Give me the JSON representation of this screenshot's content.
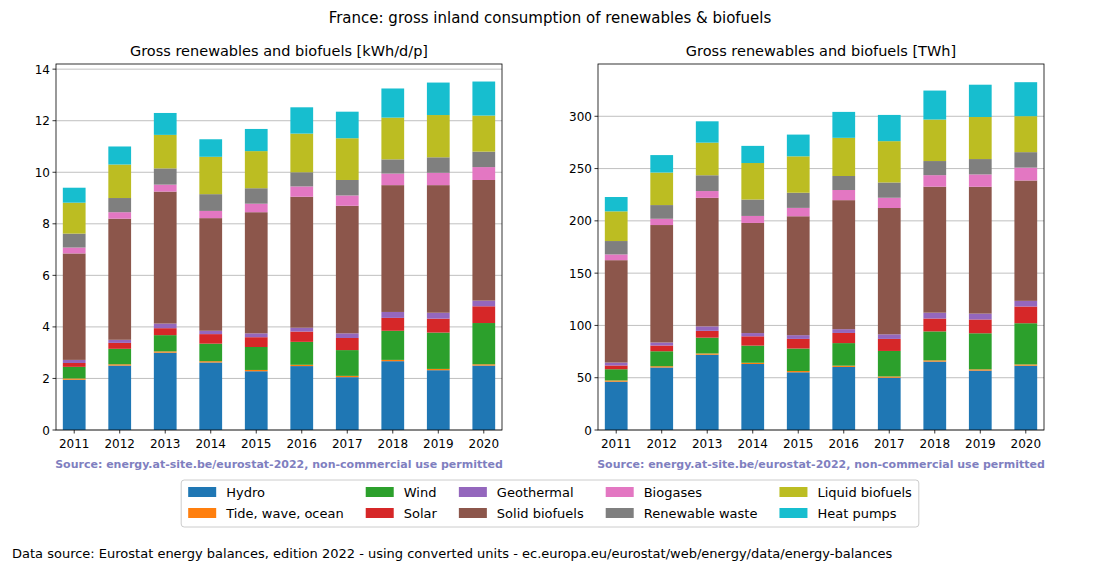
{
  "title": "France: gross inland consumption of renewables & biofuels",
  "footer": "Data source: Eurostat energy balances, edition 2022 - using converted units - ec.europa.eu/eurostat/web/energy/data/energy-balances",
  "chart_data": [
    {
      "type": "bar",
      "stacked": true,
      "grid": true,
      "legend": "bottom",
      "title": "Gross renewables and biofuels [kWh/d/p]",
      "source": "Source: energy.at-site.be/eurostat-2022, non-commercial use permitted",
      "categories": [
        "2011",
        "2012",
        "2013",
        "2014",
        "2015",
        "2016",
        "2017",
        "2018",
        "2019",
        "2020"
      ],
      "ylim": [
        0,
        14.2
      ],
      "yticks": [
        0,
        2,
        4,
        6,
        8,
        10,
        12,
        14
      ],
      "series": [
        {
          "name": "Hydro",
          "color": "#1f77b4",
          "values": [
            1.95,
            2.5,
            3.0,
            2.62,
            2.28,
            2.48,
            2.05,
            2.67,
            2.32,
            2.5
          ]
        },
        {
          "name": "Tide, wave, ocean",
          "color": "#ff7f0e",
          "values": [
            0.05,
            0.05,
            0.05,
            0.05,
            0.05,
            0.05,
            0.05,
            0.05,
            0.05,
            0.05
          ]
        },
        {
          "name": "Wind",
          "color": "#2ca02c",
          "values": [
            0.45,
            0.6,
            0.63,
            0.68,
            0.89,
            0.89,
            1.0,
            1.13,
            1.41,
            1.6
          ]
        },
        {
          "name": "Solar",
          "color": "#d62728",
          "values": [
            0.15,
            0.23,
            0.27,
            0.37,
            0.38,
            0.4,
            0.47,
            0.5,
            0.54,
            0.65
          ]
        },
        {
          "name": "Geothermal",
          "color": "#9467bd",
          "values": [
            0.12,
            0.12,
            0.18,
            0.13,
            0.15,
            0.15,
            0.18,
            0.23,
            0.23,
            0.22
          ]
        },
        {
          "name": "Solid biofuels",
          "color": "#8c564b",
          "values": [
            4.13,
            4.7,
            5.12,
            4.37,
            4.7,
            5.08,
            4.95,
            4.92,
            4.95,
            4.68
          ]
        },
        {
          "name": "Biogases",
          "color": "#e377c2",
          "values": [
            0.23,
            0.25,
            0.27,
            0.28,
            0.33,
            0.4,
            0.4,
            0.45,
            0.48,
            0.5
          ]
        },
        {
          "name": "Renewable waste",
          "color": "#7f7f7f",
          "values": [
            0.54,
            0.55,
            0.63,
            0.65,
            0.6,
            0.55,
            0.6,
            0.55,
            0.6,
            0.6
          ]
        },
        {
          "name": "Liquid biofuels",
          "color": "#bcbd22",
          "values": [
            1.2,
            1.3,
            1.3,
            1.45,
            1.44,
            1.5,
            1.62,
            1.62,
            1.64,
            1.4
          ]
        },
        {
          "name": "Heat pumps",
          "color": "#17becf",
          "values": [
            0.58,
            0.7,
            0.85,
            0.68,
            0.86,
            1.02,
            1.03,
            1.13,
            1.26,
            1.32
          ]
        }
      ]
    },
    {
      "type": "bar",
      "stacked": true,
      "grid": true,
      "title": "Gross renewables and biofuels [TWh]",
      "source": "Source: energy.at-site.be/eurostat-2022, non-commercial use permitted",
      "categories": [
        "2011",
        "2012",
        "2013",
        "2014",
        "2015",
        "2016",
        "2017",
        "2018",
        "2019",
        "2020"
      ],
      "ylim": [
        0,
        350
      ],
      "yticks": [
        0,
        50,
        100,
        150,
        200,
        250,
        300
      ],
      "series": [
        {
          "name": "Hydro",
          "color": "#1f77b4",
          "values": [
            46.2,
            59.8,
            72.0,
            63.1,
            55.2,
            60.3,
            50.0,
            65.4,
            56.8,
            61.5
          ]
        },
        {
          "name": "Tide, wave, ocean",
          "color": "#ff7f0e",
          "values": [
            1.2,
            1.2,
            1.2,
            1.2,
            1.2,
            1.2,
            1.2,
            1.2,
            1.2,
            1.2
          ]
        },
        {
          "name": "Wind",
          "color": "#2ca02c",
          "values": [
            10.7,
            14.3,
            15.1,
            16.4,
            21.5,
            21.6,
            24.4,
            27.7,
            34.5,
            39.4
          ]
        },
        {
          "name": "Solar",
          "color": "#d62728",
          "values": [
            3.6,
            5.5,
            6.5,
            8.9,
            9.2,
            9.7,
            11.5,
            12.3,
            13.2,
            16.0
          ]
        },
        {
          "name": "Geothermal",
          "color": "#9467bd",
          "values": [
            2.8,
            2.9,
            4.3,
            3.1,
            3.6,
            3.6,
            4.4,
            5.6,
            5.6,
            5.4
          ]
        },
        {
          "name": "Solid biofuels",
          "color": "#8c564b",
          "values": [
            97.9,
            112.3,
            122.9,
            105.3,
            113.7,
            123.4,
            120.8,
            120.5,
            121.3,
            115.1
          ]
        },
        {
          "name": "Biogases",
          "color": "#e377c2",
          "values": [
            5.5,
            6.0,
            6.5,
            6.7,
            8.0,
            9.7,
            9.8,
            11.0,
            11.8,
            12.3
          ]
        },
        {
          "name": "Renewable waste",
          "color": "#7f7f7f",
          "values": [
            12.8,
            13.1,
            15.1,
            15.7,
            14.5,
            13.4,
            14.6,
            13.5,
            14.7,
            14.8
          ]
        },
        {
          "name": "Liquid biofuels",
          "color": "#bcbd22",
          "values": [
            28.4,
            31.1,
            31.2,
            34.9,
            34.8,
            36.5,
            39.5,
            39.7,
            40.2,
            34.4
          ]
        },
        {
          "name": "Heat pumps",
          "color": "#17becf",
          "values": [
            13.7,
            16.7,
            20.4,
            16.4,
            20.8,
            24.8,
            25.1,
            27.7,
            30.9,
            32.5
          ]
        }
      ]
    }
  ]
}
